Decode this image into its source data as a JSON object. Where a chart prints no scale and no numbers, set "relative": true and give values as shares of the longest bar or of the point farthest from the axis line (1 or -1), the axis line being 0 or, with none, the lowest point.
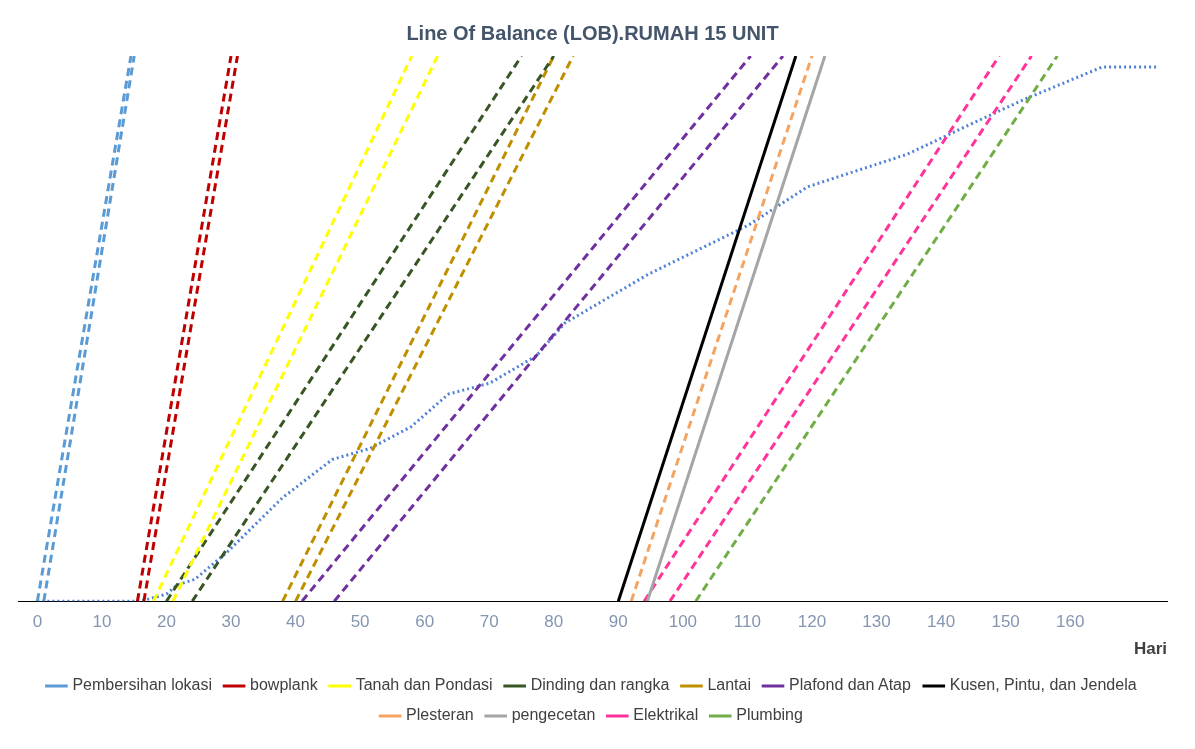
{
  "chart_data": {
    "type": "line",
    "title": "Line Of Balance (LOB).RUMAH 15 UNIT",
    "xlabel": "Hari",
    "relative": true,
    "xlim": [
      -3,
      175
    ],
    "xticks": [
      0,
      10,
      20,
      30,
      40,
      50,
      60,
      70,
      80,
      90,
      100,
      110,
      120,
      130,
      140,
      150,
      160
    ],
    "grid": false,
    "legend": "bottom",
    "marker": "none",
    "series": [
      {
        "name": "Pembersihan lokasi",
        "color": "#5b9bd5",
        "line_style": "dashed",
        "x": [
          0,
          14.5
        ],
        "values": [
          0,
          1
        ]
      },
      {
        "color": "#5b9bd5",
        "line_style": "dashed",
        "x": [
          1,
          15
        ],
        "values": [
          0,
          1
        ]
      },
      {
        "name": "bowplank",
        "color": "#c00000",
        "line_style": "dashed",
        "x": [
          15.5,
          30
        ],
        "values": [
          0,
          1
        ]
      },
      {
        "color": "#c00000",
        "line_style": "dashed",
        "x": [
          16.5,
          31
        ],
        "values": [
          0,
          1
        ]
      },
      {
        "name": "Tanah dan Pondasi",
        "color": "#ffff00",
        "line_style": "dashed",
        "x": [
          18,
          58
        ],
        "values": [
          0,
          1
        ]
      },
      {
        "color": "#ffff00",
        "line_style": "dashed",
        "x": [
          21,
          62
        ],
        "values": [
          0,
          1
        ]
      },
      {
        "name": "Dinding dan rangka",
        "color": "#375623",
        "line_style": "dashed",
        "x": [
          20,
          75
        ],
        "values": [
          0,
          1
        ]
      },
      {
        "color": "#375623",
        "line_style": "dashed",
        "x": [
          24,
          80
        ],
        "values": [
          0,
          1
        ]
      },
      {
        "name": "Lantai",
        "color": "#bf8f00",
        "line_style": "dashed",
        "x": [
          38,
          80
        ],
        "values": [
          0,
          1
        ]
      },
      {
        "color": "#bf8f00",
        "line_style": "dashed",
        "x": [
          40,
          83
        ],
        "values": [
          0,
          1
        ]
      },
      {
        "name": "Plafond dan Atap",
        "color": "#7030a0",
        "line_style": "dashed",
        "x": [
          41,
          110.5
        ],
        "values": [
          0,
          1
        ]
      },
      {
        "color": "#7030a0",
        "line_style": "dashed",
        "x": [
          46,
          115.5
        ],
        "values": [
          0,
          1
        ]
      },
      {
        "name": "Kusen, Pintu, dan Jendela",
        "color": "#000000",
        "line_style": "solid",
        "x": [
          90,
          117.5
        ],
        "values": [
          0,
          1
        ]
      },
      {
        "name": "Plesteran",
        "color": "#f4a460",
        "line_style": "dashed",
        "x": [
          92,
          120
        ],
        "values": [
          0,
          1
        ]
      },
      {
        "name": "pengecetan",
        "color": "#a5a5a5",
        "line_style": "solid",
        "x": [
          94.5,
          122
        ],
        "values": [
          0,
          1
        ]
      },
      {
        "name": "Elektrikal",
        "color": "#ff3399",
        "line_style": "dashed",
        "x": [
          94,
          149
        ],
        "values": [
          0,
          1
        ]
      },
      {
        "color": "#ff3399",
        "line_style": "dashed",
        "x": [
          98,
          154
        ],
        "values": [
          0,
          1
        ]
      },
      {
        "name": "Plumbing",
        "color": "#70ad47",
        "line_style": "dashed",
        "x": [
          102,
          158
        ],
        "values": [
          0,
          1
        ]
      },
      {
        "color": "#4f81d6",
        "line_style": "dotted",
        "x": [
          0,
          16,
          20,
          21.7,
          24.4,
          29.4,
          38,
          45.7,
          51.5,
          57.9,
          63.7,
          70.1,
          77.3,
          81.7,
          94.7,
          110.2,
          119.3,
          134.8,
          143.7,
          152.8,
          165,
          173.5
        ],
        "values": [
          0,
          0,
          0.013,
          0.03,
          0.04,
          0.09,
          0.19,
          0.26,
          0.28,
          0.32,
          0.38,
          0.4,
          0.45,
          0.51,
          0.6,
          0.69,
          0.76,
          0.82,
          0.87,
          0.92,
          0.98,
          0.98
        ]
      }
    ]
  }
}
